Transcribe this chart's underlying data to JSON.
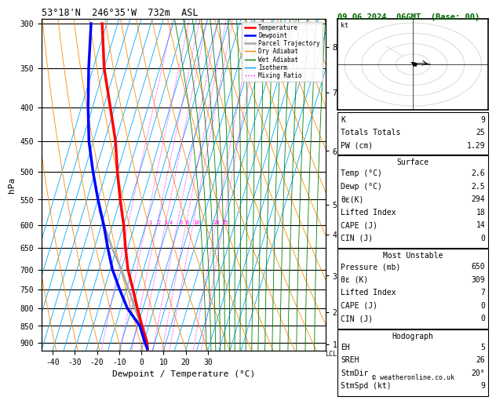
{
  "title_left": "53°18'N  246°35'W  732m  ASL",
  "title_right": "09.06.2024  06GMT  (Base: 00)",
  "xlabel": "Dewpoint / Temperature (°C)",
  "ylabel_left": "hPa",
  "xlim": [
    -45,
    38
  ],
  "pressure_ticks": [
    300,
    350,
    400,
    450,
    500,
    550,
    600,
    650,
    700,
    750,
    800,
    850,
    900
  ],
  "temp_color": "#ff0000",
  "dewpoint_color": "#0000ff",
  "parcel_color": "#aaaaaa",
  "dry_adiabat_color": "#ff8c00",
  "wet_adiabat_color": "#008000",
  "isotherm_color": "#00aaff",
  "mixing_ratio_color": "#ff00ff",
  "bg_color": "#ffffff",
  "legend_labels": [
    "Temperature",
    "Dewpoint",
    "Parcel Trajectory",
    "Dry Adiabat",
    "Wet Adiabat",
    "Isotherm",
    "Mixing Ratio"
  ],
  "legend_colors": [
    "#ff0000",
    "#0000ff",
    "#aaaaaa",
    "#ff8c00",
    "#008000",
    "#00aaff",
    "#ff00ff"
  ],
  "legend_styles": [
    "-",
    "-",
    "-",
    "-",
    "-",
    "-",
    ":"
  ],
  "skew_factor": 45.0,
  "km_ticks": [
    1,
    2,
    3,
    4,
    5,
    6,
    7,
    8
  ],
  "km_pressures": [
    905,
    810,
    715,
    620,
    560,
    465,
    380,
    325
  ],
  "lcl_pressure": 915,
  "temp_profile_p": [
    920,
    900,
    850,
    800,
    750,
    700,
    650,
    600,
    550,
    500,
    450,
    400,
    350,
    300
  ],
  "temp_profile_t": [
    2.6,
    1.5,
    -3,
    -7.5,
    -12,
    -17,
    -21,
    -25,
    -30,
    -35,
    -40,
    -47,
    -55,
    -62
  ],
  "dewp_profile_p": [
    920,
    900,
    850,
    800,
    750,
    700,
    650,
    600,
    550,
    500,
    450,
    400,
    350,
    300
  ],
  "dewp_profile_t": [
    2.5,
    0.5,
    -4,
    -12,
    -18,
    -24,
    -29,
    -34,
    -40,
    -46,
    -52,
    -57,
    -62,
    -67
  ],
  "parcel_profile_p": [
    920,
    900,
    850,
    800,
    750,
    700,
    650,
    600,
    570
  ],
  "parcel_profile_t": [
    2.5,
    1.0,
    -3.5,
    -8.5,
    -14,
    -20,
    -27,
    -34,
    -38
  ],
  "mixing_ratio_values": [
    1,
    2,
    3,
    4,
    6,
    8,
    10,
    20,
    25
  ],
  "mr_label_pressure": 595,
  "mr_label_temps": [
    -13.5,
    -9.5,
    -6.5,
    -4.0,
    0.5,
    3.5,
    7.5,
    16.5,
    20.5
  ],
  "stats_K": "9",
  "stats_TT": "25",
  "stats_PW": "1.29",
  "surf_temp": "2.6",
  "surf_dewp": "2.5",
  "surf_theta": "294",
  "surf_LI": "18",
  "surf_CAPE": "14",
  "surf_CIN": "0",
  "mu_pres": "650",
  "mu_theta": "309",
  "mu_LI": "7",
  "mu_CAPE": "0",
  "mu_CIN": "0",
  "hodo_EH": "5",
  "hodo_SREH": "26",
  "hodo_StmDir": "20°",
  "hodo_StmSpd": "9",
  "copyright": "© weatheronline.co.uk"
}
